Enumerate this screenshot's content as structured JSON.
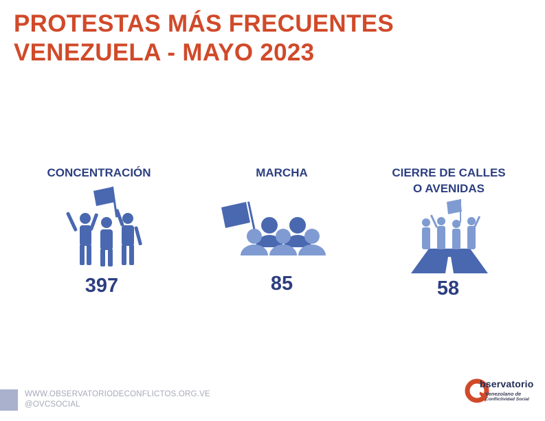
{
  "title": {
    "line1": "PROTESTAS MÁS FRECUENTES",
    "line2": "VENEZUELA - MAYO 2023"
  },
  "categories": [
    {
      "label_lines": [
        "CONCENTRACIÓN"
      ],
      "count": "397",
      "icon": "rally-people-flag-icon"
    },
    {
      "label_lines": [
        "MARCHA"
      ],
      "count": "85",
      "icon": "march-crowd-flag-icon"
    },
    {
      "label_lines": [
        "CIERRE DE CALLES",
        "O AVENIDAS"
      ],
      "count": "58",
      "icon": "road-block-people-icon"
    }
  ],
  "footer": {
    "website": "WWW.OBSERVATORIODECONFLICTOS.ORG.VE",
    "handle": "@OVCSOCIAL"
  },
  "logo": {
    "word": "bservatorio",
    "sub1": "Venezolano de",
    "sub2": "Conflictividad Social"
  },
  "colors": {
    "title": "#d04a2a",
    "navy": "#2d3f80",
    "icon_main": "#4a68b0",
    "icon_light": "#7f9bd2"
  }
}
